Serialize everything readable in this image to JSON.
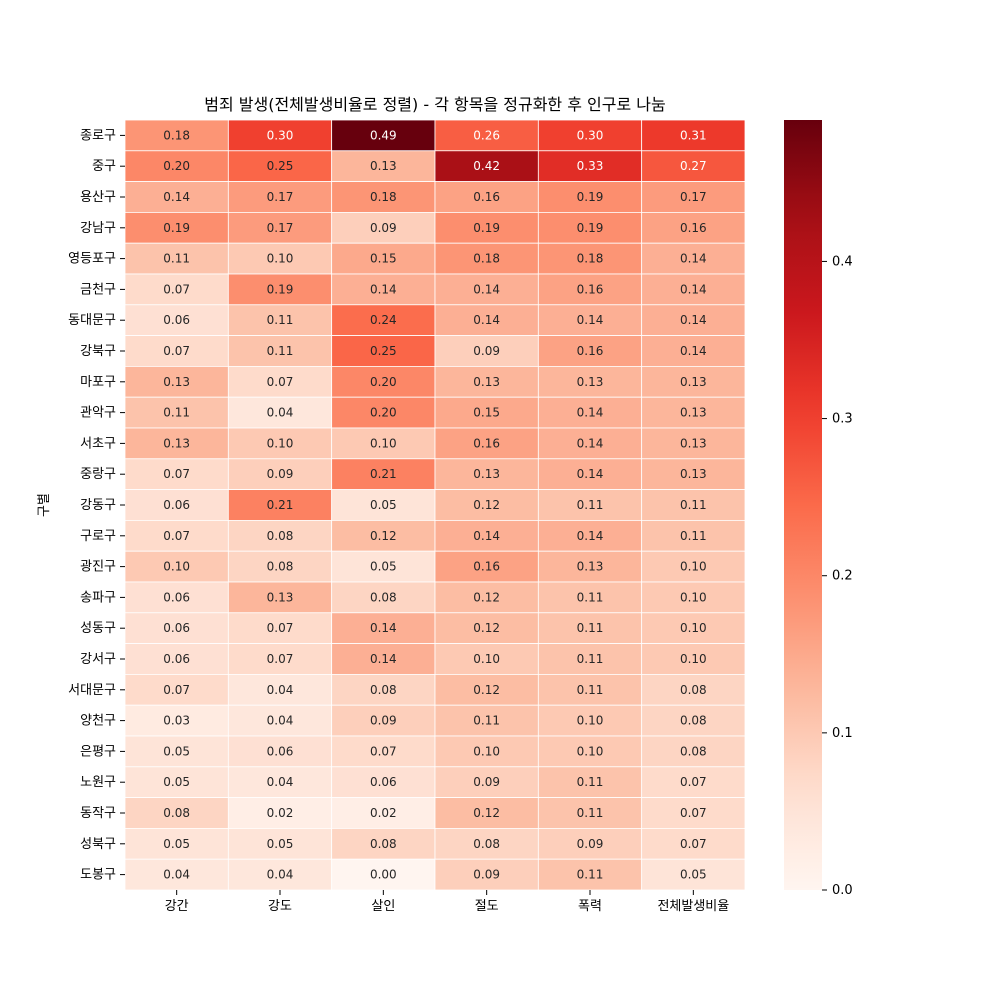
{
  "chart_data": {
    "type": "heatmap",
    "title": "범죄 발생(전체발생비율로 정렬) - 각 항목을 정규화한 후 인구로 나눔",
    "ylabel": "구별",
    "xlabel": "",
    "columns": [
      "강간",
      "강도",
      "살인",
      "절도",
      "폭력",
      "전체발생비율"
    ],
    "rows": [
      "종로구",
      "중구",
      "용산구",
      "강남구",
      "영등포구",
      "금천구",
      "동대문구",
      "강북구",
      "마포구",
      "관악구",
      "서초구",
      "중랑구",
      "강동구",
      "구로구",
      "광진구",
      "송파구",
      "성동구",
      "강서구",
      "서대문구",
      "양천구",
      "은평구",
      "노원구",
      "동작구",
      "성북구",
      "도봉구"
    ],
    "values": [
      [
        0.18,
        0.3,
        0.49,
        0.26,
        0.3,
        0.31
      ],
      [
        0.2,
        0.25,
        0.13,
        0.42,
        0.33,
        0.27
      ],
      [
        0.14,
        0.17,
        0.18,
        0.16,
        0.19,
        0.17
      ],
      [
        0.19,
        0.17,
        0.09,
        0.19,
        0.19,
        0.16
      ],
      [
        0.11,
        0.1,
        0.15,
        0.18,
        0.18,
        0.14
      ],
      [
        0.07,
        0.19,
        0.14,
        0.14,
        0.16,
        0.14
      ],
      [
        0.06,
        0.11,
        0.24,
        0.14,
        0.14,
        0.14
      ],
      [
        0.07,
        0.11,
        0.25,
        0.09,
        0.16,
        0.14
      ],
      [
        0.13,
        0.07,
        0.2,
        0.13,
        0.13,
        0.13
      ],
      [
        0.11,
        0.04,
        0.2,
        0.15,
        0.14,
        0.13
      ],
      [
        0.13,
        0.1,
        0.1,
        0.16,
        0.14,
        0.13
      ],
      [
        0.07,
        0.09,
        0.21,
        0.13,
        0.14,
        0.13
      ],
      [
        0.06,
        0.21,
        0.05,
        0.12,
        0.11,
        0.11
      ],
      [
        0.07,
        0.08,
        0.12,
        0.14,
        0.14,
        0.11
      ],
      [
        0.1,
        0.08,
        0.05,
        0.16,
        0.13,
        0.1
      ],
      [
        0.06,
        0.13,
        0.08,
        0.12,
        0.11,
        0.1
      ],
      [
        0.06,
        0.07,
        0.14,
        0.12,
        0.11,
        0.1
      ],
      [
        0.06,
        0.07,
        0.14,
        0.1,
        0.11,
        0.1
      ],
      [
        0.07,
        0.04,
        0.08,
        0.12,
        0.11,
        0.08
      ],
      [
        0.03,
        0.04,
        0.09,
        0.11,
        0.1,
        0.08
      ],
      [
        0.05,
        0.06,
        0.07,
        0.1,
        0.1,
        0.08
      ],
      [
        0.05,
        0.04,
        0.06,
        0.09,
        0.11,
        0.07
      ],
      [
        0.08,
        0.02,
        0.02,
        0.12,
        0.11,
        0.07
      ],
      [
        0.05,
        0.05,
        0.08,
        0.08,
        0.09,
        0.07
      ],
      [
        0.04,
        0.04,
        0.0,
        0.09,
        0.11,
        0.05
      ]
    ],
    "colormap": "Reds",
    "vmin": 0.0,
    "vmax": 0.49,
    "colorbar_ticks": [
      0.0,
      0.1,
      0.2,
      0.3,
      0.4
    ],
    "colorbar_tick_labels": [
      "0.0",
      "0.1",
      "0.2",
      "0.3",
      "0.4"
    ],
    "annotated": true,
    "value_format": "0.00",
    "cell_border_color": "#ffffff"
  }
}
